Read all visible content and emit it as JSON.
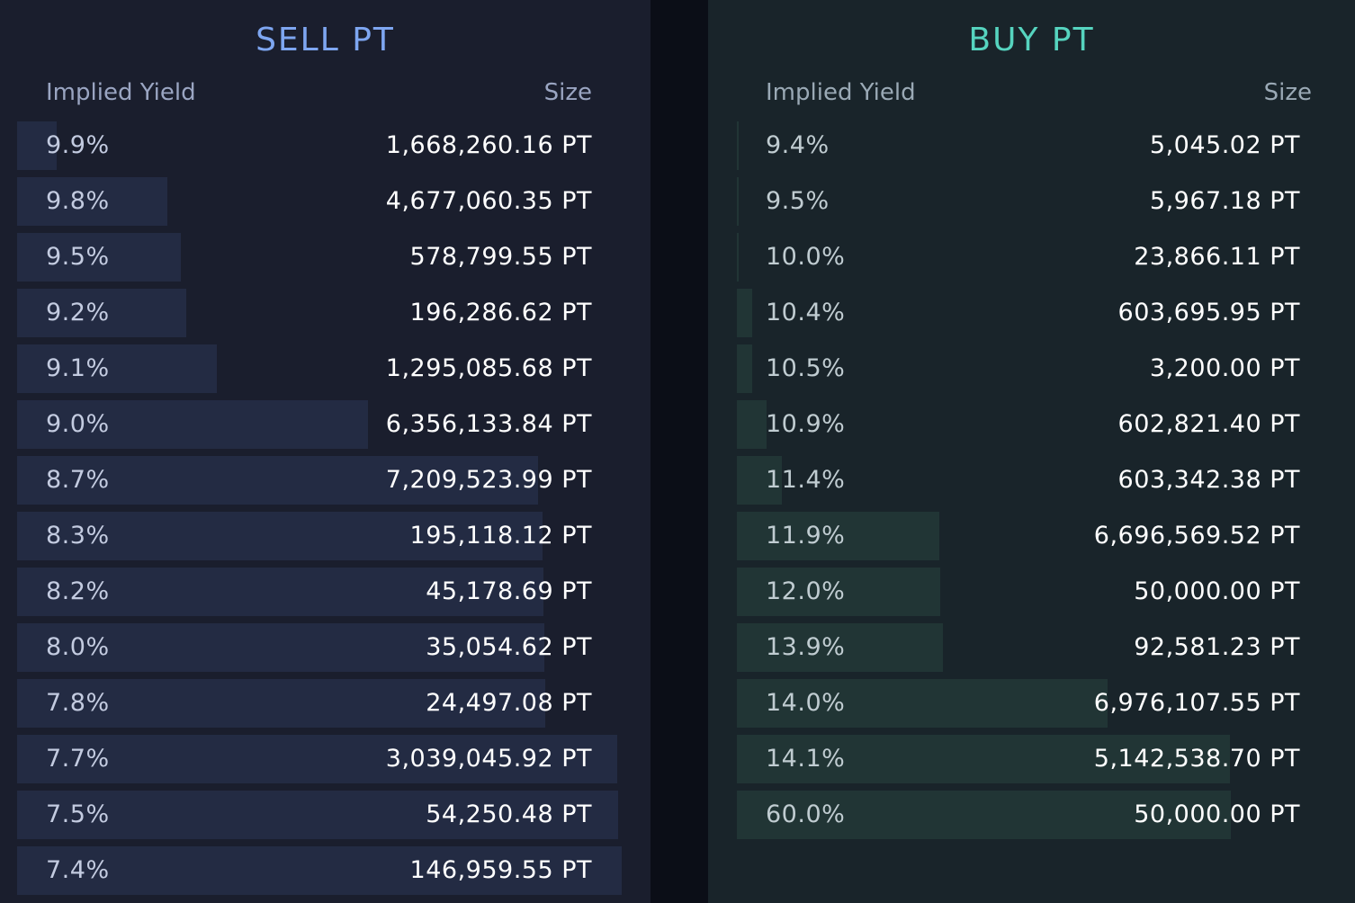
{
  "sell": {
    "title": "SELL PT",
    "yield_header": "Implied Yield",
    "size_header": "Size",
    "rows": [
      {
        "yield": "9.9%",
        "size": "1,668,260.16 PT",
        "depth": 0.064
      },
      {
        "yield": "9.8%",
        "size": "4,677,060.35 PT",
        "depth": 0.242
      },
      {
        "yield": "9.5%",
        "size": "578,799.55 PT",
        "depth": 0.264
      },
      {
        "yield": "9.2%",
        "size": "196,286.62 PT",
        "depth": 0.272
      },
      {
        "yield": "9.1%",
        "size": "1,295,085.68 PT",
        "depth": 0.322
      },
      {
        "yield": "9.0%",
        "size": "6,356,133.84 PT",
        "depth": 0.565
      },
      {
        "yield": "8.7%",
        "size": "7,209,523.99 PT",
        "depth": 0.839
      },
      {
        "yield": "8.3%",
        "size": "195,118.12 PT",
        "depth": 0.846
      },
      {
        "yield": "8.2%",
        "size": "45,178.69 PT",
        "depth": 0.848
      },
      {
        "yield": "8.0%",
        "size": "35,054.62 PT",
        "depth": 0.849
      },
      {
        "yield": "7.8%",
        "size": "24,497.08 PT",
        "depth": 0.85
      },
      {
        "yield": "7.7%",
        "size": "3,039,045.92 PT",
        "depth": 0.967
      },
      {
        "yield": "7.5%",
        "size": "54,250.48 PT",
        "depth": 0.968
      },
      {
        "yield": "7.4%",
        "size": "146,959.55 PT",
        "depth": 0.974
      }
    ]
  },
  "buy": {
    "title": "BUY PT",
    "yield_header": "Implied Yield",
    "size_header": "Size",
    "rows": [
      {
        "yield": "9.4%",
        "size": "5,045.02 PT",
        "depth": 0.003
      },
      {
        "yield": "9.5%",
        "size": "5,967.18 PT",
        "depth": 0.003
      },
      {
        "yield": "10.0%",
        "size": "23,866.11 PT",
        "depth": 0.003
      },
      {
        "yield": "10.4%",
        "size": "603,695.95 PT",
        "depth": 0.026
      },
      {
        "yield": "10.5%",
        "size": "3,200.00 PT",
        "depth": 0.026
      },
      {
        "yield": "10.9%",
        "size": "602,821.40 PT",
        "depth": 0.051
      },
      {
        "yield": "11.4%",
        "size": "603,342.38 PT",
        "depth": 0.077
      },
      {
        "yield": "11.9%",
        "size": "6,696,569.52 PT",
        "depth": 0.346
      },
      {
        "yield": "12.0%",
        "size": "50,000.00 PT",
        "depth": 0.348
      },
      {
        "yield": "13.9%",
        "size": "92,581.23 PT",
        "depth": 0.352
      },
      {
        "yield": "14.0%",
        "size": "6,976,107.55 PT",
        "depth": 0.634
      },
      {
        "yield": "14.1%",
        "size": "5,142,538.70 PT",
        "depth": 0.843
      },
      {
        "yield": "60.0%",
        "size": "50,000.00 PT",
        "depth": 0.845
      }
    ]
  },
  "colors": {
    "sell_accent": "#7ea6f1",
    "buy_accent": "#56d4bf",
    "sell_bar": "#232b43",
    "buy_bar": "#213535"
  }
}
